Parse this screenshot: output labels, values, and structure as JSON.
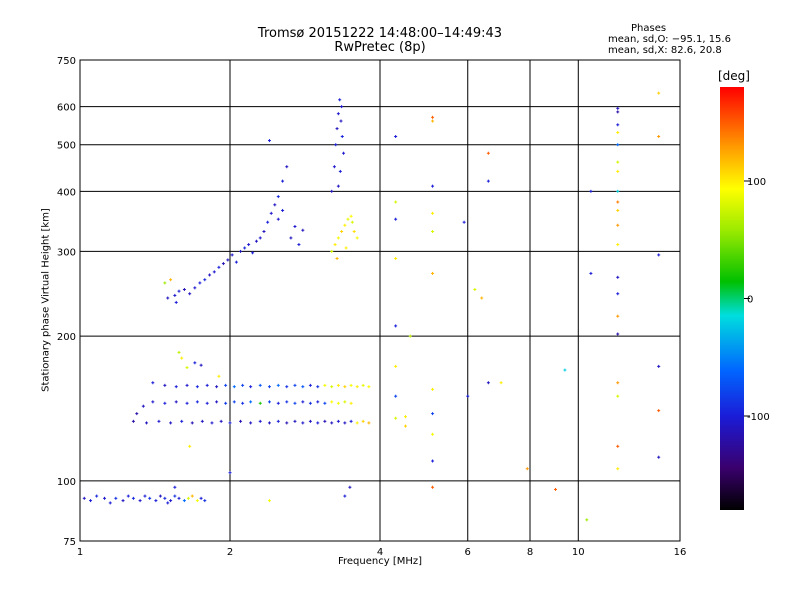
{
  "chart_data": {
    "type": "scatter",
    "title": "Tromsø 20151222 14:48:00–14:49:43",
    "subtitle": "RwPretec (8p)",
    "xlabel": "Frequency [MHz]",
    "ylabel": "Stationary phase Virtual Height [km]",
    "x_scale": "log",
    "y_scale": "log",
    "xlim": [
      1,
      16
    ],
    "ylim": [
      75,
      750
    ],
    "x_ticks": [
      1,
      2,
      4,
      6,
      8,
      10,
      16
    ],
    "x_gridlines": [
      2,
      4,
      6,
      8,
      10
    ],
    "y_ticks": [
      75,
      100,
      200,
      300,
      400,
      500,
      600,
      750
    ],
    "y_gridlines": [
      100,
      200,
      300,
      400,
      500,
      600
    ],
    "grid": true,
    "colorbar": {
      "label": "[deg]",
      "ticks": [
        100,
        0,
        -100
      ],
      "range": [
        -180,
        180
      ]
    },
    "stats": {
      "header": "Phases",
      "o_mode": "mean, sd,O: −95.1, 15.6",
      "x_mode": "mean, sd,X:  82.6, 20.8"
    },
    "points": [
      [
        1.02,
        92,
        -110
      ],
      [
        1.05,
        91,
        -100
      ],
      [
        1.08,
        93,
        -95
      ],
      [
        1.12,
        92,
        -105
      ],
      [
        1.15,
        90,
        -100
      ],
      [
        1.18,
        92,
        -90
      ],
      [
        1.22,
        91,
        -110
      ],
      [
        1.25,
        93,
        -100
      ],
      [
        1.28,
        92,
        -95
      ],
      [
        1.32,
        91,
        -105
      ],
      [
        1.35,
        93,
        -100
      ],
      [
        1.38,
        92,
        -90
      ],
      [
        1.42,
        91,
        -100
      ],
      [
        1.45,
        93,
        -110
      ],
      [
        1.48,
        92,
        -95
      ],
      [
        1.5,
        90,
        -100
      ],
      [
        1.52,
        91,
        -105
      ],
      [
        1.55,
        93,
        -90
      ],
      [
        1.58,
        92,
        -100
      ],
      [
        1.62,
        91,
        -60
      ],
      [
        1.65,
        92,
        80
      ],
      [
        1.68,
        93,
        120
      ],
      [
        1.72,
        91,
        90
      ],
      [
        1.75,
        92,
        -100
      ],
      [
        1.78,
        91,
        -90
      ],
      [
        1.55,
        97,
        -100
      ],
      [
        1.5,
        240,
        -110
      ],
      [
        1.55,
        243,
        -105
      ],
      [
        1.58,
        248,
        -100
      ],
      [
        1.62,
        250,
        -115
      ],
      [
        1.66,
        245,
        -110
      ],
      [
        1.7,
        252,
        -105
      ],
      [
        1.74,
        258,
        -100
      ],
      [
        1.78,
        262,
        -95
      ],
      [
        1.82,
        268,
        -110
      ],
      [
        1.86,
        272,
        -105
      ],
      [
        1.9,
        278,
        -100
      ],
      [
        1.94,
        283,
        -115
      ],
      [
        1.98,
        288,
        -110
      ],
      [
        2.02,
        295,
        -105
      ],
      [
        2.06,
        285,
        -100
      ],
      [
        2.1,
        300,
        -110
      ],
      [
        2.14,
        305,
        -95
      ],
      [
        2.18,
        310,
        -105
      ],
      [
        2.22,
        298,
        -100
      ],
      [
        2.26,
        315,
        -110
      ],
      [
        2.3,
        320,
        -105
      ],
      [
        2.34,
        330,
        -110
      ],
      [
        2.38,
        345,
        -100
      ],
      [
        2.42,
        360,
        -105
      ],
      [
        2.46,
        375,
        -110
      ],
      [
        2.5,
        390,
        -95
      ],
      [
        2.55,
        420,
        -100
      ],
      [
        2.6,
        450,
        -110
      ],
      [
        2.5,
        350,
        -105
      ],
      [
        2.55,
        365,
        -100
      ],
      [
        2.65,
        320,
        -110
      ],
      [
        2.7,
        338,
        -105
      ],
      [
        2.75,
        310,
        -100
      ],
      [
        2.8,
        332,
        -110
      ],
      [
        1.48,
        258,
        60
      ],
      [
        1.52,
        262,
        120
      ],
      [
        1.56,
        235,
        -100
      ],
      [
        2.4,
        510,
        -100
      ],
      [
        3.2,
        300,
        80
      ],
      [
        3.25,
        310,
        100
      ],
      [
        3.3,
        320,
        90
      ],
      [
        3.35,
        330,
        110
      ],
      [
        3.4,
        340,
        100
      ],
      [
        3.45,
        350,
        85
      ],
      [
        3.5,
        355,
        95
      ],
      [
        3.55,
        330,
        105
      ],
      [
        3.6,
        320,
        90
      ],
      [
        3.28,
        290,
        120
      ],
      [
        3.42,
        305,
        100
      ],
      [
        3.52,
        345,
        80
      ],
      [
        3.2,
        400,
        -110
      ],
      [
        3.24,
        450,
        -105
      ],
      [
        3.26,
        500,
        -100
      ],
      [
        3.28,
        540,
        -110
      ],
      [
        3.3,
        580,
        -105
      ],
      [
        3.32,
        620,
        -100
      ],
      [
        3.34,
        560,
        -110
      ],
      [
        3.36,
        520,
        -95
      ],
      [
        3.38,
        480,
        -105
      ],
      [
        3.33,
        440,
        -100
      ],
      [
        3.3,
        410,
        -110
      ],
      [
        3.35,
        600,
        -105
      ],
      [
        1.4,
        160,
        -100
      ],
      [
        1.48,
        158,
        -110
      ],
      [
        1.56,
        157,
        -100
      ],
      [
        1.64,
        158,
        -105
      ],
      [
        1.72,
        157,
        -95
      ],
      [
        1.8,
        158,
        -100
      ],
      [
        1.88,
        157,
        -110
      ],
      [
        1.96,
        158,
        -80
      ],
      [
        2.04,
        157,
        -60
      ],
      [
        2.12,
        158,
        -80
      ],
      [
        2.2,
        157,
        -100
      ],
      [
        2.3,
        158,
        -70
      ],
      [
        2.4,
        157,
        -80
      ],
      [
        2.5,
        158,
        -60
      ],
      [
        2.6,
        157,
        -90
      ],
      [
        2.7,
        158,
        -80
      ],
      [
        2.8,
        157,
        -70
      ],
      [
        2.9,
        158,
        -100
      ],
      [
        3.0,
        157,
        -90
      ],
      [
        3.1,
        158,
        90
      ],
      [
        3.2,
        157,
        80
      ],
      [
        3.3,
        158,
        100
      ],
      [
        3.4,
        157,
        110
      ],
      [
        3.5,
        158,
        90
      ],
      [
        3.6,
        157,
        100
      ],
      [
        3.7,
        158,
        85
      ],
      [
        3.8,
        157,
        95
      ],
      [
        1.4,
        146,
        -105
      ],
      [
        1.48,
        145,
        -100
      ],
      [
        1.56,
        146,
        -110
      ],
      [
        1.64,
        145,
        -100
      ],
      [
        1.72,
        146,
        -95
      ],
      [
        1.8,
        145,
        -100
      ],
      [
        1.88,
        146,
        -110
      ],
      [
        1.96,
        145,
        -85
      ],
      [
        2.04,
        146,
        -80
      ],
      [
        2.12,
        145,
        -90
      ],
      [
        2.2,
        146,
        -60
      ],
      [
        2.3,
        145,
        20
      ],
      [
        2.4,
        146,
        -80
      ],
      [
        2.5,
        145,
        -100
      ],
      [
        2.6,
        146,
        -90
      ],
      [
        2.7,
        145,
        -80
      ],
      [
        2.8,
        146,
        -100
      ],
      [
        2.9,
        145,
        -90
      ],
      [
        3.0,
        146,
        -100
      ],
      [
        3.1,
        145,
        -80
      ],
      [
        3.2,
        146,
        95
      ],
      [
        3.3,
        145,
        90
      ],
      [
        3.4,
        146,
        80
      ],
      [
        3.5,
        145,
        100
      ],
      [
        1.28,
        133,
        -120
      ],
      [
        1.36,
        132,
        -110
      ],
      [
        1.44,
        133,
        -105
      ],
      [
        1.52,
        132,
        -110
      ],
      [
        1.6,
        133,
        -100
      ],
      [
        1.68,
        132,
        -115
      ],
      [
        1.76,
        133,
        -110
      ],
      [
        1.84,
        132,
        -105
      ],
      [
        1.92,
        133,
        -110
      ],
      [
        2.0,
        132,
        -100
      ],
      [
        2.1,
        133,
        -115
      ],
      [
        2.2,
        132,
        -110
      ],
      [
        2.3,
        133,
        -105
      ],
      [
        2.4,
        132,
        -110
      ],
      [
        2.5,
        133,
        -100
      ],
      [
        2.6,
        132,
        -115
      ],
      [
        2.7,
        133,
        -110
      ],
      [
        2.8,
        132,
        -105
      ],
      [
        2.9,
        133,
        -110
      ],
      [
        3.0,
        132,
        -100
      ],
      [
        3.1,
        133,
        -115
      ],
      [
        3.2,
        132,
        -110
      ],
      [
        3.3,
        133,
        -105
      ],
      [
        3.4,
        132,
        -110
      ],
      [
        3.5,
        133,
        -100
      ],
      [
        3.6,
        132,
        100
      ],
      [
        3.7,
        133,
        110
      ],
      [
        3.8,
        132,
        120
      ],
      [
        1.3,
        138,
        -120
      ],
      [
        1.34,
        143,
        -110
      ],
      [
        1.6,
        180,
        100
      ],
      [
        1.64,
        172,
        80
      ],
      [
        1.58,
        185,
        70
      ],
      [
        1.7,
        176,
        -100
      ],
      [
        1.75,
        174,
        -110
      ],
      [
        1.9,
        165,
        100
      ],
      [
        2.0,
        104,
        -100
      ],
      [
        2.4,
        91,
        90
      ],
      [
        3.4,
        93,
        -100
      ],
      [
        3.48,
        97,
        -110
      ],
      [
        1.66,
        118,
        100
      ],
      [
        4.3,
        380,
        80
      ],
      [
        4.3,
        350,
        -100
      ],
      [
        4.3,
        290,
        100
      ],
      [
        4.3,
        210,
        -100
      ],
      [
        4.3,
        173,
        100
      ],
      [
        4.3,
        150,
        -80
      ],
      [
        4.3,
        135,
        80
      ],
      [
        4.5,
        136,
        100
      ],
      [
        4.5,
        130,
        110
      ],
      [
        4.3,
        520,
        -100
      ],
      [
        4.6,
        200,
        70
      ],
      [
        5.1,
        570,
        150
      ],
      [
        5.1,
        560,
        120
      ],
      [
        5.1,
        410,
        -100
      ],
      [
        5.1,
        360,
        100
      ],
      [
        5.1,
        330,
        80
      ],
      [
        5.1,
        270,
        120
      ],
      [
        5.1,
        155,
        100
      ],
      [
        5.1,
        138,
        -80
      ],
      [
        5.1,
        125,
        90
      ],
      [
        5.1,
        110,
        -100
      ],
      [
        5.1,
        97,
        150
      ],
      [
        5.9,
        345,
        -100
      ],
      [
        6.2,
        250,
        80
      ],
      [
        6.4,
        240,
        120
      ],
      [
        6.6,
        480,
        150
      ],
      [
        6.6,
        420,
        -100
      ],
      [
        6.6,
        160,
        -110
      ],
      [
        6.0,
        150,
        -100
      ],
      [
        7.0,
        160,
        100
      ],
      [
        7.9,
        106,
        130
      ],
      [
        9.0,
        96,
        150
      ],
      [
        9.4,
        170,
        -20
      ],
      [
        10.4,
        83,
        60
      ],
      [
        10.6,
        270,
        -100
      ],
      [
        10.6,
        400,
        -100
      ],
      [
        12.0,
        595,
        -110
      ],
      [
        12.0,
        585,
        -120
      ],
      [
        12.0,
        550,
        -100
      ],
      [
        12.0,
        530,
        100
      ],
      [
        12.0,
        500,
        -60
      ],
      [
        12.0,
        460,
        80
      ],
      [
        12.0,
        440,
        100
      ],
      [
        12.0,
        400,
        -20
      ],
      [
        12.0,
        380,
        140
      ],
      [
        12.0,
        365,
        110
      ],
      [
        12.0,
        340,
        130
      ],
      [
        12.0,
        310,
        100
      ],
      [
        12.0,
        265,
        -110
      ],
      [
        12.0,
        245,
        -100
      ],
      [
        12.0,
        220,
        130
      ],
      [
        12.0,
        202,
        -120
      ],
      [
        12.0,
        160,
        130
      ],
      [
        12.0,
        150,
        80
      ],
      [
        12.0,
        118,
        150
      ],
      [
        12.0,
        106,
        100
      ],
      [
        14.5,
        640,
        110
      ],
      [
        14.5,
        520,
        130
      ],
      [
        14.5,
        295,
        -100
      ],
      [
        14.5,
        173,
        -110
      ],
      [
        14.5,
        140,
        150
      ],
      [
        14.5,
        112,
        -110
      ]
    ]
  }
}
